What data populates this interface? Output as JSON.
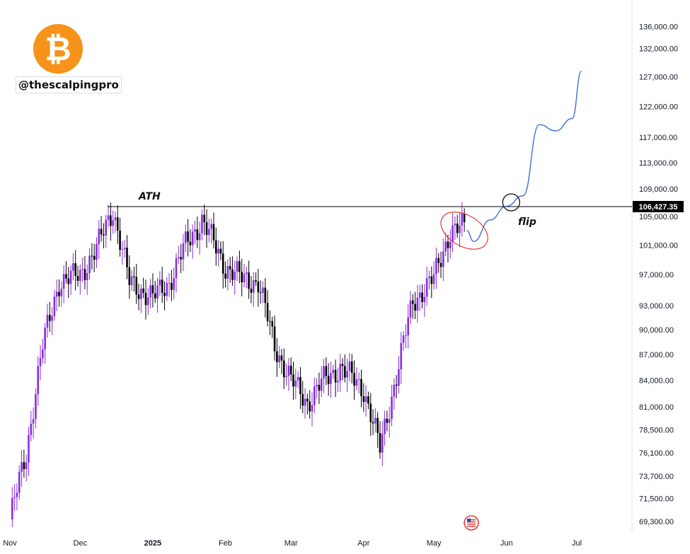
{
  "branding": {
    "logo_symbol": "₿",
    "logo_color": "#f7931a",
    "handle": "@thescalpingpro",
    "flag_icon": "us-flag-icon"
  },
  "annotations": {
    "ath_label": "ATH",
    "flip_label": "flip"
  },
  "colors": {
    "candle_up": "#8a2be2",
    "candle_down": "#000000",
    "projection": "#3d6fd8",
    "highlight_ellipse": "#e53935",
    "price_tag_bg": "#000000"
  },
  "chart_data": {
    "type": "candlestick",
    "title": "",
    "xlabel": "",
    "ylabel": "",
    "x_ticks": [
      "Nov",
      "Dec",
      "2025",
      "Feb",
      "Mar",
      "Apr",
      "May",
      "Jun",
      "Jul"
    ],
    "y_ticks": [
      "136,000.00",
      "132,000.00",
      "127,000.00",
      "122,000.00",
      "117,000.00",
      "113,000.00",
      "109,000.00",
      "105,000.00",
      "101,000.00",
      "97,000.00",
      "93,000.00",
      "90,000.00",
      "87,000.00",
      "84,000.00",
      "81,000.00",
      "78,500.00",
      "76,100.00",
      "73,700.00",
      "71,500.00",
      "69,300.00"
    ],
    "y_scale": "log",
    "ylim": [
      68000,
      140000
    ],
    "resistance_level": 106427.35,
    "resistance_label": "106,427.35",
    "period_closes": [
      {
        "period": "Nov 1",
        "close": 69500
      },
      {
        "period": "Nov 8",
        "close": 76000
      },
      {
        "period": "Nov 15",
        "close": 88000
      },
      {
        "period": "Nov 22",
        "close": 96000
      },
      {
        "period": "Dec 1",
        "close": 97000
      },
      {
        "period": "Dec 8",
        "close": 100500
      },
      {
        "period": "Dec 15",
        "close": 106000
      },
      {
        "period": "Dec 22",
        "close": 96000
      },
      {
        "period": "Jan 1",
        "close": 94000
      },
      {
        "period": "Jan 8",
        "close": 96000
      },
      {
        "period": "Jan 15",
        "close": 101000
      },
      {
        "period": "Jan 22",
        "close": 104500
      },
      {
        "period": "Feb 1",
        "close": 98000
      },
      {
        "period": "Feb 8",
        "close": 96500
      },
      {
        "period": "Feb 15",
        "close": 96000
      },
      {
        "period": "Feb 22",
        "close": 88000
      },
      {
        "period": "Mar 1",
        "close": 84000
      },
      {
        "period": "Mar 8",
        "close": 81500
      },
      {
        "period": "Mar 15",
        "close": 84000
      },
      {
        "period": "Mar 22",
        "close": 85500
      },
      {
        "period": "Apr 1",
        "close": 83000
      },
      {
        "period": "Apr 8",
        "close": 76500
      },
      {
        "period": "Apr 15",
        "close": 84500
      },
      {
        "period": "Apr 22",
        "close": 93500
      },
      {
        "period": "May 1",
        "close": 96500
      },
      {
        "period": "May 8",
        "close": 103000
      },
      {
        "period": "May 14",
        "close": 103500
      }
    ],
    "projection": [
      {
        "period": "May 15",
        "price": 103000
      },
      {
        "period": "May 18",
        "price": 101500
      },
      {
        "period": "May 25",
        "price": 104500
      },
      {
        "period": "Jun 1",
        "price": 106500
      },
      {
        "period": "Jun 8",
        "price": 108000
      },
      {
        "period": "Jun 15",
        "price": 119000
      },
      {
        "period": "Jun 22",
        "price": 118000
      },
      {
        "period": "Jun 29",
        "price": 120000
      },
      {
        "period": "Jul 3",
        "price": 128000
      }
    ]
  }
}
